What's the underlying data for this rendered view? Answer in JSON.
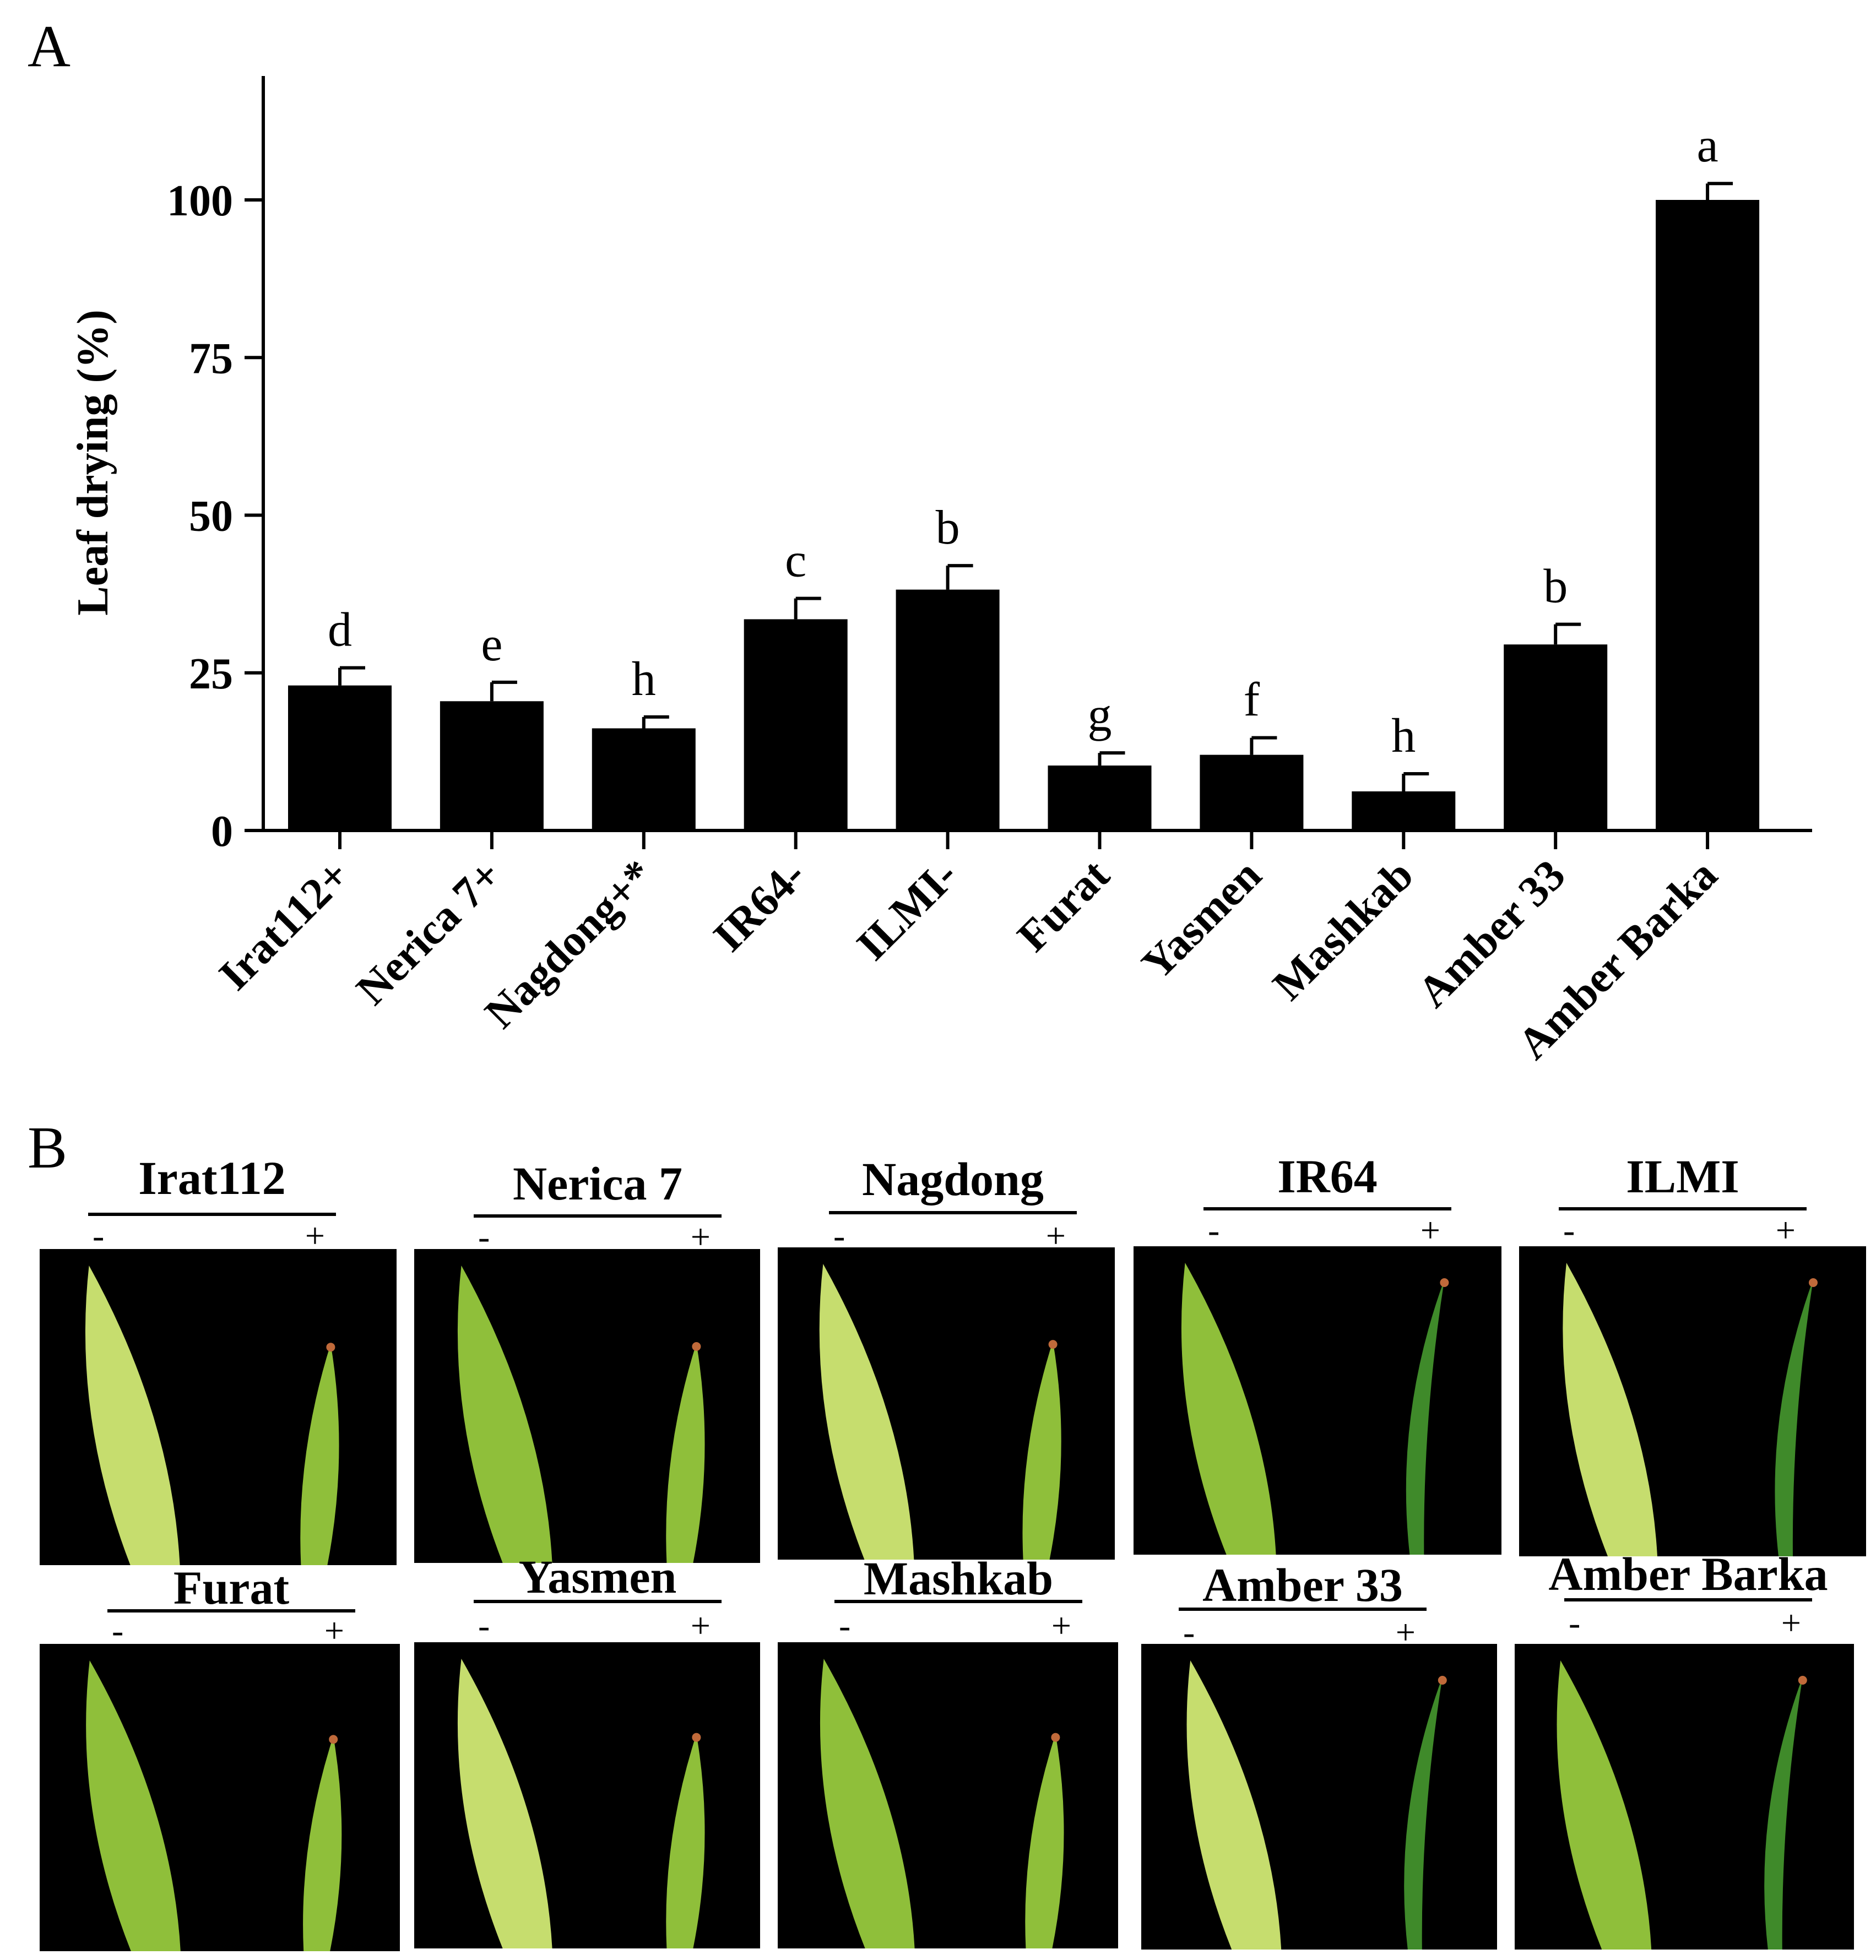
{
  "panel_a": {
    "label": "A"
  },
  "panel_b": {
    "label": "B",
    "minus": "-",
    "plus": "+",
    "cultivars": [
      "Irat112",
      "Nerica 7",
      "Nagdong",
      "IR64",
      "ILMI",
      "Furat",
      "Yasmen",
      "Mashkab",
      "Amber 33",
      "Amber Barka"
    ]
  },
  "colors": {
    "bar": "#000000",
    "photo_bg": "#000000",
    "leaf": "#8fbf3a",
    "leaf_light": "#c6dd6e",
    "leaf_dark": "#3f8a2a",
    "leaf_tip": "#c06a3a"
  },
  "chart_data": {
    "type": "bar",
    "title": "",
    "xlabel": "",
    "ylabel": "Leaf drying (%)",
    "ylim": [
      0,
      120
    ],
    "yticks": [
      0,
      25,
      50,
      75,
      100
    ],
    "categories": [
      "Irat112+",
      "Nerica 7+",
      "Nagdong+*",
      "IR64-",
      "ILMI-",
      "Furat",
      "Yasmen",
      "Mashkab",
      "Amber 33",
      "Amber Barka"
    ],
    "values": [
      23,
      20.5,
      16.2,
      33.5,
      38.2,
      10.3,
      12,
      6.2,
      29.5,
      100
    ],
    "errors": [
      2.8,
      3,
      1.8,
      3.3,
      3.8,
      2,
      2.7,
      2.8,
      3.2,
      2.6
    ],
    "significance_letters": [
      "d",
      "e",
      "h",
      "c",
      "b",
      "g",
      "f",
      "h",
      "b",
      "a"
    ]
  }
}
